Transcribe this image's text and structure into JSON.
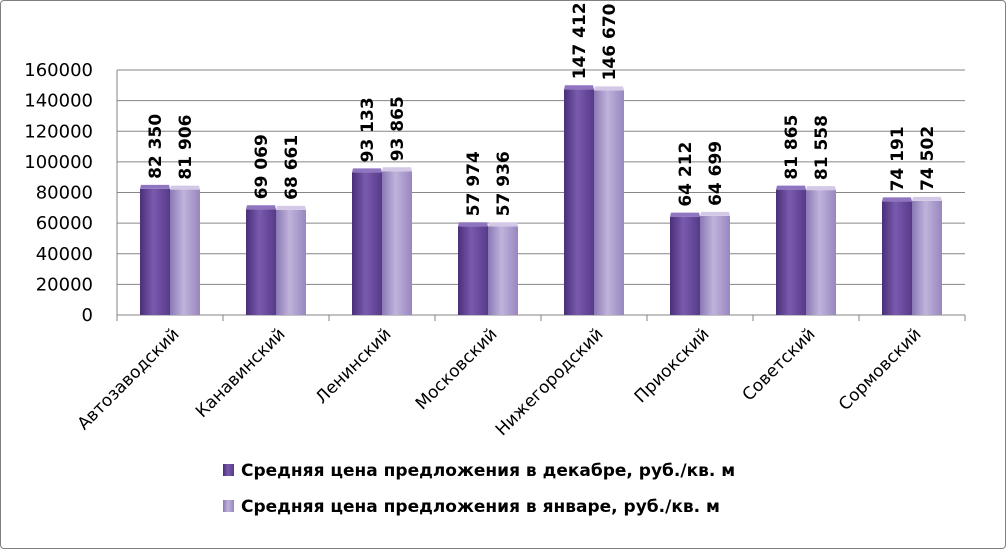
{
  "chart_data": {
    "type": "bar",
    "categories": [
      "Автозаводский",
      "Канавинский",
      "Ленинский",
      "Московский",
      "Нижегородский",
      "Приокский",
      "Советский",
      "Сормовский"
    ],
    "series": [
      {
        "name": "Средняя цена предложения в декабре, руб./кв. м",
        "values": [
          82350,
          69069,
          93133,
          57974,
          147412,
          64212,
          81865,
          74191
        ],
        "labels": [
          "82 350",
          "69 069",
          "93 133",
          "57 974",
          "147 412",
          "64 212",
          "81 865",
          "74 191"
        ],
        "color": "#6b4c9a"
      },
      {
        "name": "Средняя цена предложения в январе, руб./кв. м",
        "values": [
          81906,
          68661,
          93865,
          57936,
          146670,
          64699,
          81558,
          74502
        ],
        "labels": [
          "81 906",
          "68 661",
          "93 865",
          "57 936",
          "146 670",
          "64 699",
          "81 558",
          "74 502"
        ],
        "color": "#a392c6"
      }
    ],
    "yticks": [
      "0",
      "20000",
      "40000",
      "60000",
      "80000",
      "100000",
      "120000",
      "140000",
      "160000"
    ],
    "ylim": [
      0,
      160000
    ],
    "grid": true,
    "legend_position": "bottom",
    "title": "",
    "xlabel": "",
    "ylabel": ""
  }
}
